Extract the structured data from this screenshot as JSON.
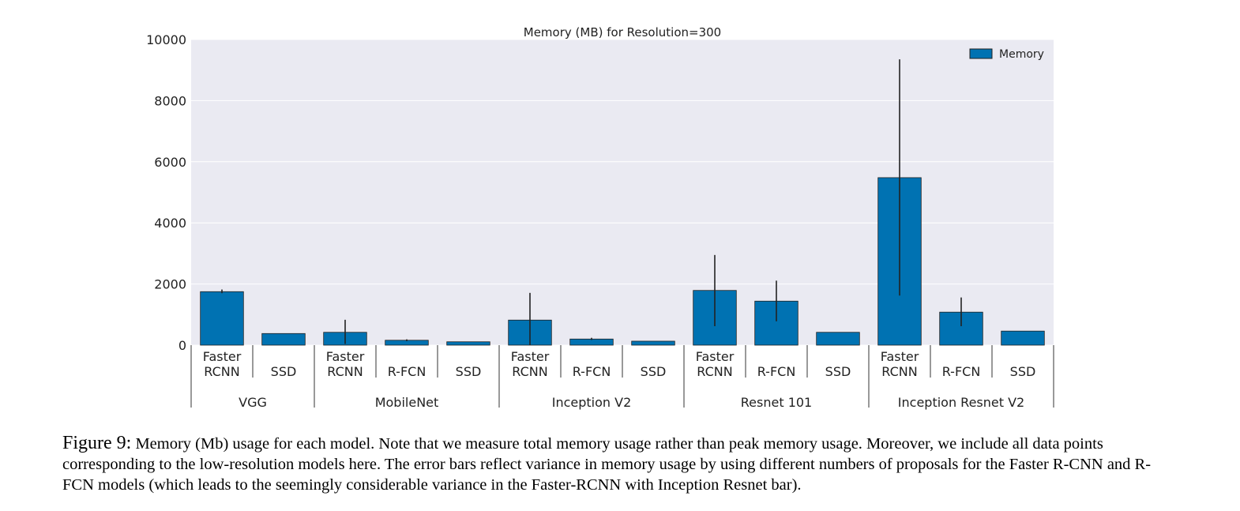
{
  "chart_data": {
    "type": "bar",
    "title": "Memory (MB) for Resolution=300",
    "ylim": [
      0,
      10000
    ],
    "yticks": [
      0,
      2000,
      4000,
      6000,
      8000,
      10000
    ],
    "legend": {
      "label": "Memory",
      "position": "top-right"
    },
    "grid": true,
    "bar_color": "#0072b2",
    "background_color": "#eaeaf2",
    "groups": [
      {
        "name": "VGG",
        "bars": [
          {
            "label": [
              "Faster",
              "RCNN"
            ],
            "value": 1750,
            "err_low": 1700,
            "err_high": 1820
          },
          {
            "label": [
              "SSD"
            ],
            "value": 380,
            "err_low": null,
            "err_high": null
          }
        ]
      },
      {
        "name": "MobileNet",
        "bars": [
          {
            "label": [
              "Faster",
              "RCNN"
            ],
            "value": 420,
            "err_low": 40,
            "err_high": 830
          },
          {
            "label": [
              "R-FCN"
            ],
            "value": 160,
            "err_low": 130,
            "err_high": 190
          },
          {
            "label": [
              "SSD"
            ],
            "value": 110,
            "err_low": null,
            "err_high": null
          }
        ]
      },
      {
        "name": "Inception V2",
        "bars": [
          {
            "label": [
              "Faster",
              "RCNN"
            ],
            "value": 820,
            "err_low": 0,
            "err_high": 1710
          },
          {
            "label": [
              "R-FCN"
            ],
            "value": 200,
            "err_low": 170,
            "err_high": 240
          },
          {
            "label": [
              "SSD"
            ],
            "value": 130,
            "err_low": null,
            "err_high": null
          }
        ]
      },
      {
        "name": "Resnet 101",
        "bars": [
          {
            "label": [
              "Faster",
              "RCNN"
            ],
            "value": 1790,
            "err_low": 620,
            "err_high": 2950
          },
          {
            "label": [
              "R-FCN"
            ],
            "value": 1440,
            "err_low": 780,
            "err_high": 2110
          },
          {
            "label": [
              "SSD"
            ],
            "value": 420,
            "err_low": null,
            "err_high": null
          }
        ]
      },
      {
        "name": "Inception Resnet V2",
        "bars": [
          {
            "label": [
              "Faster",
              "RCNN"
            ],
            "value": 5480,
            "err_low": 1620,
            "err_high": 9350
          },
          {
            "label": [
              "R-FCN"
            ],
            "value": 1080,
            "err_low": 620,
            "err_high": 1560
          },
          {
            "label": [
              "SSD"
            ],
            "value": 460,
            "err_low": null,
            "err_high": null
          }
        ]
      }
    ]
  },
  "caption": {
    "figure_number": "Figure 9:",
    "text": "Memory (Mb) usage for each model. Note that we measure total memory usage rather than peak memory usage. Moreover, we include all data points corresponding to the low-resolution models here. The error bars reflect variance in memory usage by using different numbers of proposals for the Faster R-CNN and R-FCN models (which leads to the seemingly considerable variance in the Faster-RCNN with Inception Resnet bar)."
  }
}
